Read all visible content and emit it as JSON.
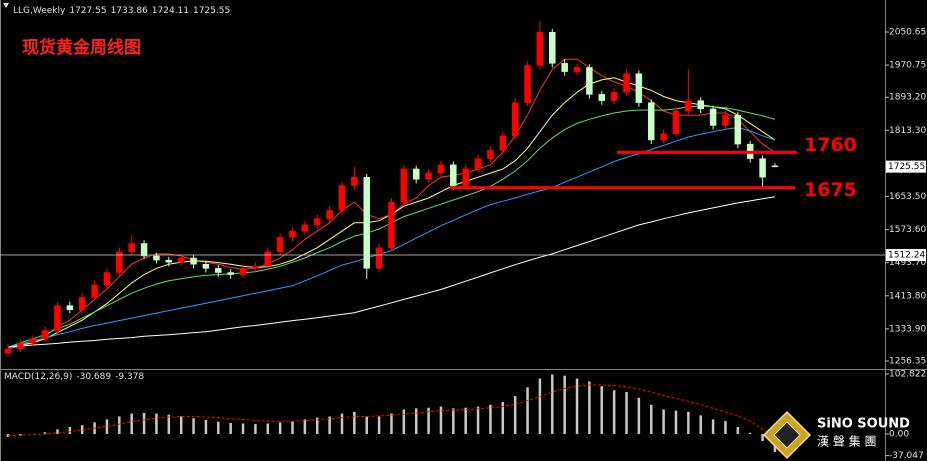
{
  "chart_data": {
    "type": "candlestick",
    "title": "LLG,Weekly",
    "annotation": "现货黄金周线图",
    "ohlc": [
      [
        1275,
        1298,
        1268,
        1285
      ],
      [
        1285,
        1308,
        1278,
        1300
      ],
      [
        1300,
        1318,
        1292,
        1310
      ],
      [
        1310,
        1340,
        1302,
        1330
      ],
      [
        1330,
        1398,
        1322,
        1390
      ],
      [
        1390,
        1400,
        1372,
        1380
      ],
      [
        1380,
        1420,
        1372,
        1410
      ],
      [
        1410,
        1450,
        1402,
        1440
      ],
      [
        1440,
        1480,
        1432,
        1470
      ],
      [
        1470,
        1530,
        1462,
        1520
      ],
      [
        1520,
        1560,
        1512,
        1540
      ],
      [
        1540,
        1548,
        1502,
        1510
      ],
      [
        1510,
        1518,
        1492,
        1500
      ],
      [
        1500,
        1508,
        1485,
        1495
      ],
      [
        1495,
        1515,
        1487,
        1505
      ],
      [
        1505,
        1513,
        1480,
        1490
      ],
      [
        1490,
        1498,
        1470,
        1480
      ],
      [
        1480,
        1488,
        1460,
        1470
      ],
      [
        1470,
        1478,
        1455,
        1465
      ],
      [
        1465,
        1490,
        1457,
        1480
      ],
      [
        1480,
        1495,
        1472,
        1485
      ],
      [
        1485,
        1530,
        1477,
        1520
      ],
      [
        1520,
        1565,
        1512,
        1555
      ],
      [
        1555,
        1580,
        1545,
        1570
      ],
      [
        1570,
        1595,
        1560,
        1585
      ],
      [
        1585,
        1610,
        1575,
        1600
      ],
      [
        1600,
        1630,
        1590,
        1620
      ],
      [
        1620,
        1690,
        1610,
        1680
      ],
      [
        1680,
        1725,
        1670,
        1700
      ],
      [
        1700,
        1708,
        1455,
        1480
      ],
      [
        1480,
        1540,
        1470,
        1530
      ],
      [
        1530,
        1650,
        1520,
        1640
      ],
      [
        1640,
        1730,
        1630,
        1720
      ],
      [
        1720,
        1728,
        1685,
        1695
      ],
      [
        1695,
        1720,
        1687,
        1710
      ],
      [
        1710,
        1740,
        1700,
        1730
      ],
      [
        1730,
        1738,
        1670,
        1680
      ],
      [
        1680,
        1730,
        1672,
        1720
      ],
      [
        1720,
        1755,
        1712,
        1745
      ],
      [
        1745,
        1775,
        1737,
        1765
      ],
      [
        1765,
        1810,
        1757,
        1800
      ],
      [
        1800,
        1890,
        1792,
        1880
      ],
      [
        1880,
        1980,
        1872,
        1970
      ],
      [
        1970,
        2078,
        1960,
        2050
      ],
      [
        2050,
        2058,
        1965,
        1975
      ],
      [
        1975,
        1985,
        1945,
        1955
      ],
      [
        1955,
        1975,
        1947,
        1965
      ],
      [
        1965,
        1973,
        1890,
        1900
      ],
      [
        1900,
        1908,
        1875,
        1885
      ],
      [
        1885,
        1915,
        1877,
        1905
      ],
      [
        1905,
        1962,
        1897,
        1950
      ],
      [
        1950,
        1958,
        1870,
        1880
      ],
      [
        1880,
        1888,
        1780,
        1790
      ],
      [
        1790,
        1815,
        1782,
        1805
      ],
      [
        1805,
        1870,
        1797,
        1860
      ],
      [
        1860,
        1960,
        1852,
        1885
      ],
      [
        1885,
        1893,
        1855,
        1865
      ],
      [
        1865,
        1873,
        1815,
        1825
      ],
      [
        1825,
        1860,
        1817,
        1850
      ],
      [
        1850,
        1858,
        1770,
        1780
      ],
      [
        1780,
        1788,
        1735,
        1745
      ],
      [
        1745,
        1753,
        1676,
        1700
      ],
      [
        1727.55,
        1733.86,
        1724.11,
        1725.55
      ]
    ],
    "up_color": "#ff0000",
    "down_color": "#c8ffc8",
    "ma_lines": [
      {
        "color": "#ff3030",
        "values": [
          1285,
          1292,
          1300,
          1315,
          1340,
          1355,
          1380,
          1405,
          1430,
          1460,
          1490,
          1505,
          1515,
          1515,
          1510,
          1500,
          1495,
          1490,
          1482,
          1478,
          1480,
          1490,
          1505,
          1525,
          1550,
          1570,
          1590,
          1620,
          1640,
          1610,
          1600,
          1610,
          1635,
          1650,
          1680,
          1700,
          1705,
          1710,
          1720,
          1730,
          1760,
          1800,
          1850,
          1910,
          1960,
          1985,
          1985,
          1965,
          1945,
          1930,
          1920,
          1905,
          1885,
          1860,
          1850,
          1850,
          1850,
          1855,
          1855,
          1840,
          1810,
          1780,
          1760
        ]
      },
      {
        "color": "#ffff80",
        "values": [
          1290,
          1295,
          1300,
          1310,
          1325,
          1340,
          1355,
          1375,
          1395,
          1420,
          1445,
          1465,
          1480,
          1490,
          1495,
          1498,
          1497,
          1494,
          1490,
          1485,
          1482,
          1484,
          1490,
          1500,
          1515,
          1530,
          1550,
          1570,
          1590,
          1590,
          1595,
          1610,
          1630,
          1640,
          1650,
          1665,
          1680,
          1690,
          1700,
          1710,
          1720,
          1740,
          1770,
          1810,
          1850,
          1880,
          1905,
          1925,
          1935,
          1940,
          1930,
          1920,
          1910,
          1895,
          1885,
          1880,
          1875,
          1870,
          1865,
          1850,
          1830,
          1810,
          1790
        ]
      },
      {
        "color": "#66dd66",
        "values": [
          1290,
          1300,
          1310,
          1320,
          1335,
          1345,
          1360,
          1375,
          1390,
          1405,
          1420,
          1432,
          1442,
          1450,
          1455,
          1460,
          1463,
          1465,
          1467,
          1469,
          1472,
          1478,
          1485,
          1495,
          1505,
          1518,
          1530,
          1545,
          1558,
          1565,
          1575,
          1590,
          1605,
          1615,
          1625,
          1635,
          1645,
          1655,
          1665,
          1678,
          1695,
          1715,
          1740,
          1770,
          1795,
          1815,
          1830,
          1840,
          1848,
          1855,
          1860,
          1862,
          1862,
          1862,
          1865,
          1870,
          1872,
          1870,
          1868,
          1862,
          1855,
          1848,
          1840
        ]
      },
      {
        "color": "#3399ff",
        "values": [
          1290,
          1297,
          1305,
          1312,
          1320,
          1327,
          1335,
          1342,
          1348,
          1354,
          1360,
          1366,
          1372,
          1378,
          1384,
          1390,
          1396,
          1402,
          1408,
          1414,
          1420,
          1426,
          1432,
          1438,
          1450,
          1462,
          1475,
          1488,
          1496,
          1505,
          1514,
          1523,
          1538,
          1553,
          1568,
          1583,
          1596,
          1609,
          1622,
          1634,
          1642,
          1650,
          1659,
          1667,
          1675,
          1688,
          1700,
          1713,
          1725,
          1738,
          1748,
          1757,
          1767,
          1777,
          1787,
          1797,
          1804,
          1810,
          1816,
          1820,
          1812,
          1800,
          1790
        ]
      },
      {
        "color": "#ffffff",
        "values": [
          1290,
          1292,
          1295,
          1297,
          1299,
          1302,
          1304,
          1306,
          1309,
          1311,
          1313,
          1316,
          1318,
          1320,
          1322,
          1325,
          1327,
          1331,
          1335,
          1339,
          1342,
          1346,
          1350,
          1354,
          1357,
          1361,
          1365,
          1369,
          1373,
          1381,
          1389,
          1397,
          1405,
          1413,
          1421,
          1429,
          1439,
          1449,
          1459,
          1469,
          1479,
          1489,
          1498,
          1507,
          1515,
          1525,
          1535,
          1545,
          1555,
          1565,
          1575,
          1585,
          1592,
          1600,
          1607,
          1614,
          1620,
          1626,
          1632,
          1638,
          1643,
          1648,
          1653
        ]
      }
    ],
    "levels": [
      1760,
      1675
    ],
    "level_color": "#ff0000",
    "crosshair": 1512.24,
    "ylim": [
      1239.5,
      2127.9
    ],
    "yticks": [
      2050.65,
      1970.75,
      {
        "value": 1893.2,
        "label": "1893.20"
      },
      {
        "value": 1813.3,
        "label": "1813.30"
      },
      {
        "value": 1653.5,
        "label": "1653.50"
      },
      {
        "value": 1573.6,
        "label": "1573.60"
      },
      {
        "value": 1493.7,
        "label": "1493.70"
      },
      {
        "value": 1413.8,
        "label": "1413.80"
      },
      {
        "value": 1333.9,
        "label": "1333.90"
      },
      1256.35
    ],
    "macd": {
      "title": "MACD(12,26,9)",
      "color": "#c8c8c8",
      "signal_color": "#ff0000",
      "values": [
        -5,
        -3,
        0,
        3,
        8,
        12,
        15,
        20,
        25,
        30,
        35,
        36,
        35,
        33,
        30,
        27,
        24,
        21,
        19,
        18,
        17,
        18,
        20,
        22,
        25,
        28,
        30,
        35,
        38,
        30,
        30,
        35,
        42,
        44,
        45,
        47,
        44,
        45,
        47,
        50,
        55,
        65,
        80,
        95,
        102,
        100,
        95,
        90,
        82,
        75,
        72,
        62,
        50,
        42,
        40,
        38,
        32,
        25,
        22,
        12,
        2,
        -12,
        -30.689
      ],
      "signal": [
        -3,
        -2,
        -1,
        0,
        2,
        4,
        7,
        10,
        13,
        17,
        21,
        24,
        27,
        29,
        30,
        30,
        29,
        28,
        26,
        25,
        23,
        22,
        22,
        22,
        23,
        24,
        26,
        28,
        30,
        30,
        31,
        32,
        34,
        36,
        38,
        40,
        41,
        42,
        43,
        45,
        47,
        51,
        57,
        64,
        72,
        78,
        82,
        84,
        84,
        83,
        81,
        77,
        72,
        66,
        61,
        56,
        50,
        44,
        38,
        31,
        22,
        8,
        -9.378
      ],
      "ylim": [
        -46.3,
        111.4
      ],
      "yticks": [
        102.822,
        {
          "value": 0,
          "label": "0.00"
        },
        -37.047
      ]
    }
  },
  "logo": {
    "name": "SiNO SOUND",
    "chinese": "漢 聲 集 團"
  }
}
